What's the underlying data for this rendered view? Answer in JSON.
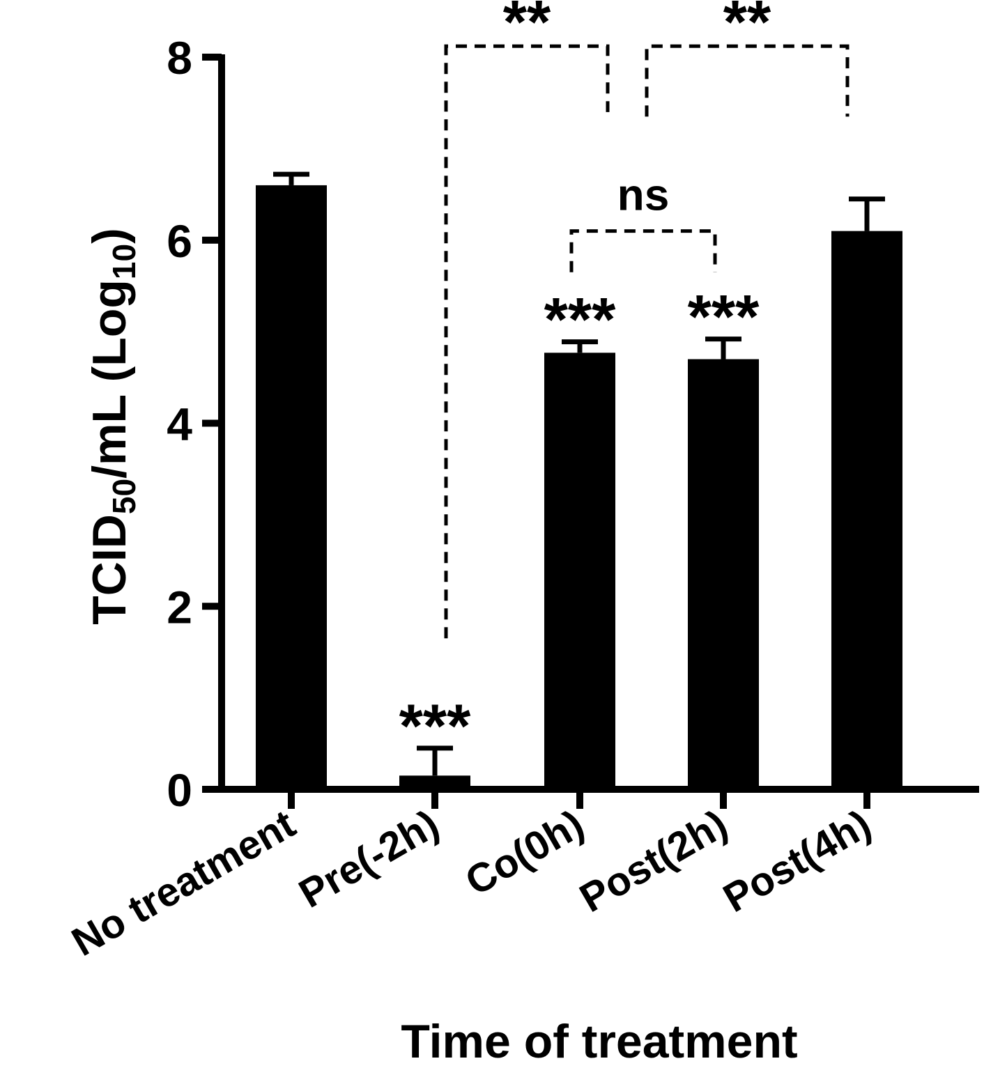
{
  "chart_data": {
    "type": "bar",
    "categories": [
      "No treatment",
      "Pre(-2h)",
      "Co(0h)",
      "Post(2h)",
      "Post(4h)"
    ],
    "values": [
      6.6,
      0.15,
      4.77,
      4.7,
      6.1
    ],
    "error_upper": [
      6.72,
      0.45,
      4.89,
      4.92,
      6.45
    ],
    "bar_significance": [
      "",
      "***",
      "***",
      "***",
      ""
    ],
    "ylabel_parts": {
      "pre": "TCID",
      "sub1": "50",
      "mid": "/mL (Log",
      "sub2": "10",
      "post": ")"
    },
    "xlabel": "Time of treatment",
    "ylim": [
      0,
      8
    ],
    "yticks": [
      0,
      2,
      4,
      6,
      8
    ],
    "ytick_labels": [
      "0",
      "2",
      "4",
      "6",
      "8"
    ],
    "grid": false,
    "colors": {
      "bar": "#000000",
      "axis": "#000000",
      "background": "#ffffff"
    },
    "comparisons": [
      {
        "from": "Pre(-2h)",
        "to": "Co(0h)",
        "label": "**",
        "from_end": 1.65,
        "to_end": 7.4,
        "top": 8.12
      },
      {
        "from": "Co(0h)",
        "to": "Post(4h)",
        "label": "**",
        "from_end": 7.35,
        "to_end": 7.35,
        "top": 8.12
      },
      {
        "from": "Co(0h)",
        "to": "Post(2h)",
        "label": "ns",
        "from_end": 5.65,
        "to_end": 5.65,
        "top": 6.1
      }
    ]
  }
}
